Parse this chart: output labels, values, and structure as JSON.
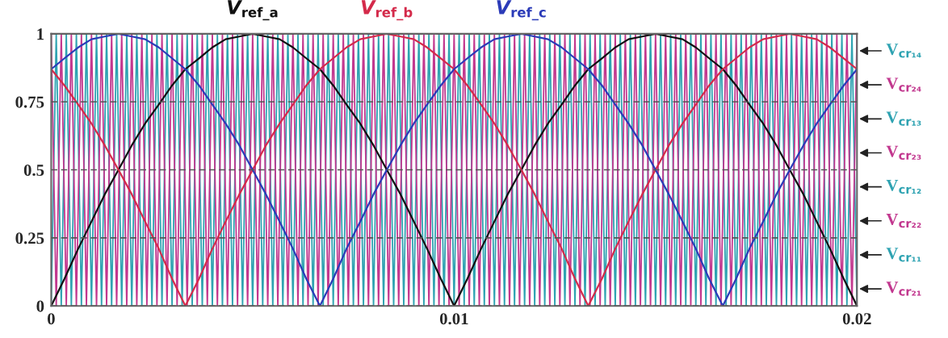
{
  "chart_data": {
    "type": "line",
    "x": [
      0,
      0.000125,
      0.00025,
      0.000375,
      0.0005,
      0.000625,
      0.00075,
      0.000875,
      0.001,
      0.001125,
      0.00125,
      0.001375,
      0.0015,
      0.001625,
      0.00175,
      0.001875,
      0.002,
      0.002125,
      0.00225,
      0.002375,
      0.0025,
      0.002625,
      0.00275,
      0.002875,
      0.003,
      0.003125,
      0.00325,
      0.003375,
      0.0035,
      0.003625,
      0.00375,
      0.003875,
      0.004,
      0.004125,
      0.00425,
      0.004375,
      0.0045,
      0.004625,
      0.00475,
      0.004875,
      0.005,
      0.005125,
      0.00525,
      0.005375,
      0.0055,
      0.005625,
      0.00575,
      0.005875,
      0.006,
      0.006125,
      0.00625,
      0.006375,
      0.0065,
      0.006625,
      0.00675,
      0.006875,
      0.007,
      0.007125,
      0.00725,
      0.007375,
      0.0075,
      0.007625,
      0.00775,
      0.007875,
      0.008,
      0.008125,
      0.00825,
      0.008375,
      0.0085,
      0.008625,
      0.00875,
      0.008875,
      0.009,
      0.009125,
      0.00925,
      0.009375,
      0.0095,
      0.009625,
      0.00975,
      0.009875,
      0.01,
      0.010125,
      0.01025,
      0.010375,
      0.0105,
      0.010625,
      0.01075,
      0.010875,
      0.011,
      0.011125,
      0.01125,
      0.011375,
      0.0115,
      0.011625,
      0.01175,
      0.011875,
      0.012,
      0.012125,
      0.01225,
      0.012375,
      0.0125,
      0.012625,
      0.01275,
      0.012875,
      0.013,
      0.013125,
      0.01325,
      0.013375,
      0.0135,
      0.013625,
      0.01375,
      0.013875,
      0.014,
      0.014125,
      0.01425,
      0.014375,
      0.0145,
      0.014625,
      0.01475,
      0.014875,
      0.015,
      0.015125,
      0.01525,
      0.015375,
      0.0155,
      0.015625,
      0.01575,
      0.015875,
      0.016,
      0.016125,
      0.01625,
      0.016375,
      0.0165,
      0.016625,
      0.01675,
      0.016875,
      0.017,
      0.017125,
      0.01725,
      0.017375,
      0.0175,
      0.017625,
      0.01775,
      0.017875,
      0.018,
      0.018125,
      0.01825,
      0.018375,
      0.0185,
      0.018625,
      0.01875,
      0.018875,
      0.019,
      0.019125,
      0.01925,
      0.019375,
      0.0195,
      0.019625,
      0.01975,
      0.019875,
      0.02
    ],
    "series": [
      {
        "color": "#2fa3b2",
        "values": [
          0,
          1,
          0,
          1,
          0,
          1,
          0,
          1,
          0,
          1,
          0,
          1,
          0,
          1,
          0,
          1,
          0,
          1,
          0,
          1,
          0,
          1,
          0,
          1,
          0,
          1,
          0,
          1,
          0,
          1,
          0,
          1,
          0,
          1,
          0,
          1,
          0,
          1,
          0,
          1,
          0,
          1,
          0,
          1,
          0,
          1,
          0,
          1,
          0,
          1,
          0,
          1,
          0,
          1,
          0,
          1,
          0,
          1,
          0,
          1,
          0,
          1,
          0,
          1,
          0,
          1,
          0,
          1,
          0,
          1,
          0,
          1,
          0,
          1,
          0,
          1,
          0,
          1,
          0,
          1,
          0,
          1,
          0,
          1,
          0,
          1,
          0,
          1,
          0,
          1,
          0,
          1,
          0,
          1,
          0,
          1,
          0,
          1,
          0,
          1,
          0,
          1,
          0,
          1,
          0,
          1,
          0,
          1,
          0,
          1,
          0,
          1,
          0,
          1,
          0,
          1,
          0,
          1,
          0,
          1,
          0,
          1,
          0,
          1,
          0,
          1,
          0,
          1,
          0,
          1,
          0,
          1,
          0,
          1,
          0,
          1,
          0,
          1,
          0,
          1,
          0,
          1,
          0,
          1,
          0,
          1,
          0,
          1,
          0,
          1,
          0,
          1,
          0,
          1,
          0,
          1,
          0,
          1,
          0,
          1,
          0
        ]
      },
      {
        "color": "#c2388f",
        "values": [
          1,
          0,
          1,
          0,
          1,
          0,
          1,
          0,
          1,
          0,
          1,
          0,
          1,
          0,
          1,
          0,
          1,
          0,
          1,
          0,
          1,
          0,
          1,
          0,
          1,
          0,
          1,
          0,
          1,
          0,
          1,
          0,
          1,
          0,
          1,
          0,
          1,
          0,
          1,
          0,
          1,
          0,
          1,
          0,
          1,
          0,
          1,
          0,
          1,
          0,
          1,
          0,
          1,
          0,
          1,
          0,
          1,
          0,
          1,
          0,
          1,
          0,
          1,
          0,
          1,
          0,
          1,
          0,
          1,
          0,
          1,
          0,
          1,
          0,
          1,
          0,
          1,
          0,
          1,
          0,
          1,
          0,
          1,
          0,
          1,
          0,
          1,
          0,
          1,
          0,
          1,
          0,
          1,
          0,
          1,
          0,
          1,
          0,
          1,
          0,
          1,
          0,
          1,
          0,
          1,
          0,
          1,
          0,
          1,
          0,
          1,
          0,
          1,
          0,
          1,
          0,
          1,
          0,
          1,
          0,
          1,
          0,
          1,
          0,
          1,
          0,
          1,
          0,
          1,
          0,
          1,
          0,
          1,
          0,
          1,
          0,
          1,
          0,
          1,
          0,
          1,
          0,
          1,
          0,
          1,
          0,
          1,
          0,
          1,
          0,
          1,
          0,
          1,
          0,
          1,
          0,
          1,
          0,
          1,
          0,
          1
        ]
      },
      {
        "name": "V$_{ref_a}$",
        "color": "#111111",
        "x": [
          0,
          0.00033,
          0.00067,
          0.001,
          0.00133,
          0.00167,
          0.002,
          0.00233,
          0.00267,
          0.003,
          0.00333,
          0.00367,
          0.004,
          0.00433,
          0.00467,
          0.005,
          0.00533,
          0.00567,
          0.006,
          0.00633,
          0.00667,
          0.007,
          0.00733,
          0.00767,
          0.008,
          0.00833,
          0.00867,
          0.009,
          0.00933,
          0.00967,
          0.01,
          0.01033,
          0.01067,
          0.011,
          0.01133,
          0.01167,
          0.012,
          0.01233,
          0.01267,
          0.013,
          0.01333,
          0.01367,
          0.014,
          0.01433,
          0.01467,
          0.015,
          0.01533,
          0.01567,
          0.016,
          0.01633,
          0.01667,
          0.017,
          0.01733,
          0.01767,
          0.018,
          0.01833,
          0.01867,
          0.019,
          0.01933,
          0.01967,
          0.02
        ],
        "values": [
          0,
          0.1,
          0.21,
          0.31,
          0.41,
          0.5,
          0.59,
          0.67,
          0.74,
          0.81,
          0.87,
          0.91,
          0.95,
          0.98,
          0.99,
          1,
          0.99,
          0.98,
          0.95,
          0.91,
          0.87,
          0.81,
          0.74,
          0.67,
          0.59,
          0.5,
          0.41,
          0.31,
          0.21,
          0.1,
          0,
          0.1,
          0.21,
          0.31,
          0.41,
          0.5,
          0.59,
          0.67,
          0.74,
          0.81,
          0.87,
          0.91,
          0.95,
          0.98,
          0.99,
          1,
          0.99,
          0.98,
          0.95,
          0.91,
          0.87,
          0.81,
          0.74,
          0.67,
          0.59,
          0.5,
          0.41,
          0.31,
          0.21,
          0.1,
          0
        ]
      },
      {
        "name": "V$_{ref_b}$",
        "color": "#d42a4a",
        "x": [
          0,
          0.00033,
          0.00067,
          0.001,
          0.00133,
          0.00167,
          0.002,
          0.00233,
          0.00267,
          0.003,
          0.00333,
          0.00367,
          0.004,
          0.00433,
          0.00467,
          0.005,
          0.00533,
          0.00567,
          0.006,
          0.00633,
          0.00667,
          0.007,
          0.00733,
          0.00767,
          0.008,
          0.00833,
          0.00867,
          0.009,
          0.00933,
          0.00967,
          0.01,
          0.01033,
          0.01067,
          0.011,
          0.01133,
          0.01167,
          0.012,
          0.01233,
          0.01267,
          0.013,
          0.01333,
          0.01367,
          0.014,
          0.01433,
          0.01467,
          0.015,
          0.01533,
          0.01567,
          0.016,
          0.01633,
          0.01667,
          0.017,
          0.01733,
          0.01767,
          0.018,
          0.01833,
          0.01867,
          0.019,
          0.01933,
          0.01967,
          0.02
        ],
        "values": [
          0.87,
          0.81,
          0.74,
          0.67,
          0.59,
          0.5,
          0.41,
          0.31,
          0.21,
          0.1,
          0,
          0.1,
          0.21,
          0.31,
          0.41,
          0.5,
          0.59,
          0.67,
          0.74,
          0.81,
          0.87,
          0.91,
          0.95,
          0.98,
          0.99,
          1,
          0.99,
          0.98,
          0.95,
          0.91,
          0.87,
          0.81,
          0.74,
          0.67,
          0.59,
          0.5,
          0.41,
          0.31,
          0.21,
          0.1,
          0,
          0.1,
          0.21,
          0.31,
          0.41,
          0.5,
          0.59,
          0.67,
          0.74,
          0.81,
          0.87,
          0.91,
          0.95,
          0.98,
          0.99,
          1,
          0.99,
          0.98,
          0.95,
          0.91,
          0.87
        ]
      },
      {
        "name": "V$_{ref_c}$",
        "color": "#2b3bb8",
        "x": [
          0,
          0.00033,
          0.00067,
          0.001,
          0.00133,
          0.00167,
          0.002,
          0.00233,
          0.00267,
          0.003,
          0.00333,
          0.00367,
          0.004,
          0.00433,
          0.00467,
          0.005,
          0.00533,
          0.00567,
          0.006,
          0.00633,
          0.00667,
          0.007,
          0.00733,
          0.00767,
          0.008,
          0.00833,
          0.00867,
          0.009,
          0.00933,
          0.00967,
          0.01,
          0.01033,
          0.01067,
          0.011,
          0.01133,
          0.01167,
          0.012,
          0.01233,
          0.01267,
          0.013,
          0.01333,
          0.01367,
          0.014,
          0.01433,
          0.01467,
          0.015,
          0.01533,
          0.01567,
          0.016,
          0.01633,
          0.01667,
          0.017,
          0.01733,
          0.01767,
          0.018,
          0.01833,
          0.01867,
          0.019,
          0.01933,
          0.01967,
          0.02
        ],
        "values": [
          0.87,
          0.91,
          0.95,
          0.98,
          0.99,
          1,
          0.99,
          0.98,
          0.95,
          0.91,
          0.87,
          0.81,
          0.74,
          0.67,
          0.59,
          0.5,
          0.41,
          0.31,
          0.21,
          0.1,
          0,
          0.1,
          0.21,
          0.31,
          0.41,
          0.5,
          0.59,
          0.67,
          0.74,
          0.81,
          0.87,
          0.91,
          0.95,
          0.98,
          0.99,
          1,
          0.99,
          0.98,
          0.95,
          0.91,
          0.87,
          0.81,
          0.74,
          0.67,
          0.59,
          0.5,
          0.41,
          0.31,
          0.21,
          0.1,
          0,
          0.1,
          0.21,
          0.31,
          0.41,
          0.5,
          0.59,
          0.67,
          0.74,
          0.81,
          0.87
        ]
      }
    ],
    "xlim": [
      0,
      0.02
    ],
    "ylim": [
      0,
      1
    ],
    "xticks": [
      0,
      0.01,
      0.02
    ],
    "yticks": [
      0,
      0.25,
      0.5,
      0.75,
      1
    ],
    "grid": "y",
    "annotations": [
      "V$_{cr₁₄}$",
      "V$_{cr₂₄}$",
      "V$_{cr₁₃}$",
      "V$_{cr₂₃}$",
      "V$_{cr₁₂}$",
      "V$_{cr₂₂}$",
      "V$_{cr₁₁}$",
      "V$_{cr₂₁}$"
    ]
  }
}
